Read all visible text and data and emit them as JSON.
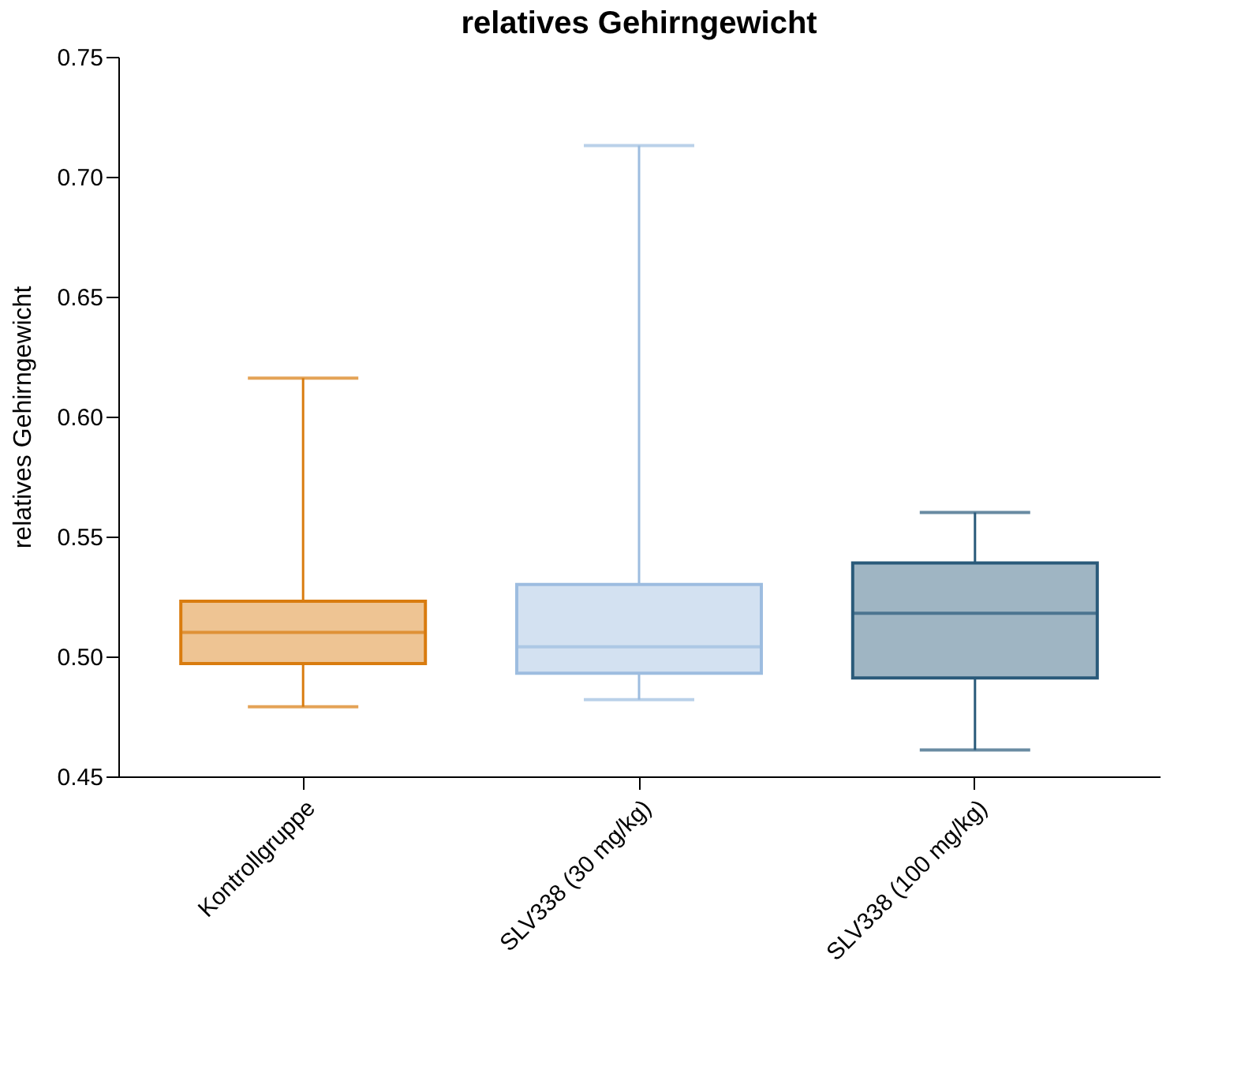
{
  "chart_data": {
    "type": "box",
    "title": "relatives Gehirngewicht",
    "ylabel": "relatives Gehirngewicht",
    "categories": [
      "Kontrollgruppe",
      "SLV338 (30 mg/kg)",
      "SLV338 (100 mg/kg)"
    ],
    "colors": [
      "#d97c0f",
      "#9dbde0",
      "#2a5a7a"
    ],
    "boxes": [
      {
        "low": 0.479,
        "q1": 0.497,
        "median": 0.51,
        "q3": 0.523,
        "high": 0.616
      },
      {
        "low": 0.482,
        "q1": 0.493,
        "median": 0.504,
        "q3": 0.53,
        "high": 0.713
      },
      {
        "low": 0.461,
        "q1": 0.491,
        "median": 0.518,
        "q3": 0.539,
        "high": 0.56
      }
    ],
    "ylim": [
      0.45,
      0.75
    ],
    "yticks": [
      0.45,
      {
        "value": 0.5,
        "label": "0.50"
      },
      0.55,
      {
        "value": 0.6,
        "label": "0.60"
      },
      0.65,
      {
        "value": 0.7,
        "label": "0.70"
      },
      0.75
    ],
    "grid": false
  }
}
